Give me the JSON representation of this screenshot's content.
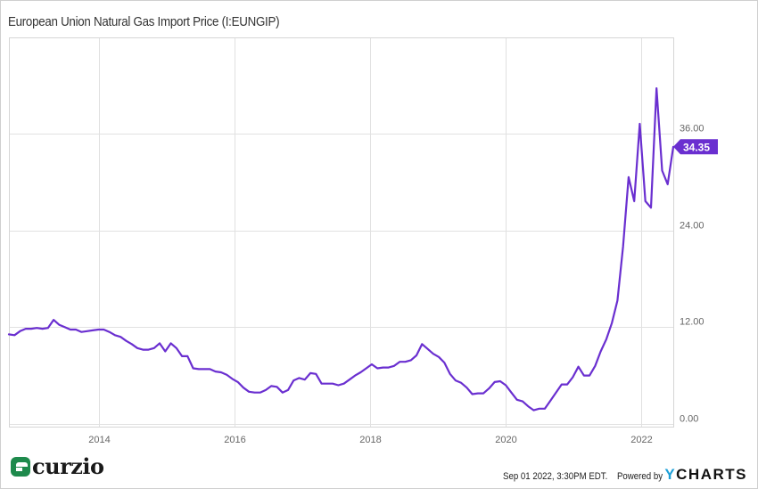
{
  "header": {
    "title": "European Union Natural Gas Import Price (I:EUNGIP)"
  },
  "footer": {
    "logo_text": "curzio",
    "timestamp": "Sep 01 2022, 3:30PM EDT.",
    "powered_by": "Powered by",
    "brand_y": "Y",
    "brand_rest": "CHARTS"
  },
  "colors": {
    "line": "#6a2fd0",
    "label_bg": "#6a2fd0",
    "grid": "#e1e1e1",
    "axis_text": "#666666",
    "logo_green": "#1e8a4c",
    "ycharts_blue": "#1ea0d8"
  },
  "chart_data": {
    "type": "line",
    "title": "European Union Natural Gas Import Price (I:EUNGIP)",
    "xlabel": "",
    "ylabel": "",
    "x_start": "2012-09",
    "x_end": "2022-08",
    "frequency": "monthly",
    "ylim": [
      0,
      42
    ],
    "y_ticks": [
      0,
      12,
      24,
      36
    ],
    "y_tick_labels": [
      "0.00",
      "12.00",
      "24.00",
      "36.00"
    ],
    "x_ticks": [
      "2014",
      "2016",
      "2018",
      "2020",
      "2022"
    ],
    "grid": true,
    "legend": "none",
    "last_value_label": "34.35",
    "series": [
      {
        "name": "European Union Natural Gas Import Price",
        "values": [
          11.1,
          11.0,
          11.5,
          11.8,
          11.8,
          11.9,
          11.8,
          11.9,
          12.9,
          12.3,
          12.0,
          11.7,
          11.7,
          11.4,
          11.5,
          11.6,
          11.7,
          11.7,
          11.4,
          11.0,
          10.8,
          10.3,
          9.9,
          9.4,
          9.2,
          9.2,
          9.4,
          10.0,
          9.0,
          10.0,
          9.4,
          8.4,
          8.4,
          6.9,
          6.8,
          6.8,
          6.8,
          6.5,
          6.4,
          6.1,
          5.6,
          5.2,
          4.5,
          4.0,
          3.9,
          3.9,
          4.2,
          4.7,
          4.6,
          3.9,
          4.2,
          5.4,
          5.7,
          5.5,
          6.3,
          6.2,
          5.0,
          5.0,
          5.0,
          4.8,
          5.0,
          5.5,
          6.0,
          6.4,
          6.9,
          7.4,
          6.9,
          7.0,
          7.0,
          7.2,
          7.7,
          7.7,
          7.9,
          8.5,
          9.9,
          9.3,
          8.7,
          8.3,
          7.6,
          6.2,
          5.4,
          5.1,
          4.5,
          3.7,
          3.8,
          3.8,
          4.4,
          5.2,
          5.3,
          4.8,
          3.9,
          3.0,
          2.8,
          2.2,
          1.7,
          1.9,
          1.9,
          2.9,
          3.9,
          4.9,
          4.9,
          5.8,
          7.1,
          6.0,
          6.0,
          7.2,
          9.0,
          10.5,
          12.5,
          15.3,
          22.0,
          30.6,
          27.6,
          37.2,
          27.6,
          26.8,
          41.6,
          31.4,
          29.7,
          34.35
        ]
      }
    ]
  }
}
